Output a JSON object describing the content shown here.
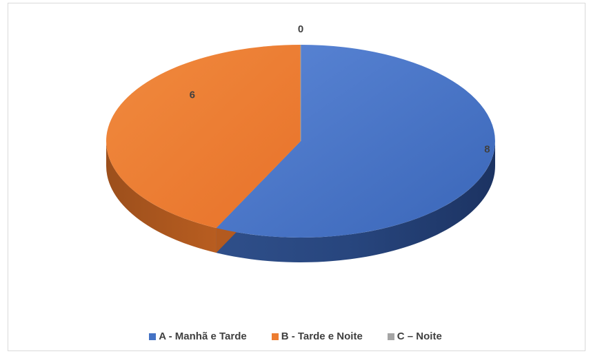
{
  "chart_data": {
    "type": "pie",
    "three_d": true,
    "categories": [
      "A - Manhã e Tarde",
      "B - Tarde e Noite",
      "C – Noite"
    ],
    "values": [
      8,
      6,
      0
    ],
    "colors": [
      "#4472c4",
      "#ed7d31",
      "#a5a5a5"
    ],
    "data_labels": [
      "8",
      "6",
      "0"
    ],
    "legend_position": "bottom"
  }
}
